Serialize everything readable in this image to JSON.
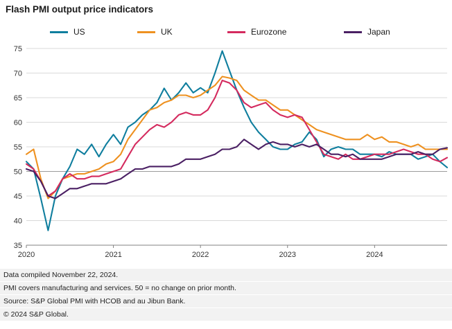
{
  "title": "Flash PMI output price indicators",
  "footer": {
    "lines": [
      "Data compiled November 22, 2024.",
      "PMI covers manufacturing and services. 50 = no change on prior month.",
      "Source: S&P Global PMI with HCOB and au Jibun Bank.",
      "© 2024 S&P Global."
    ]
  },
  "chart_data": {
    "type": "line",
    "title": "Flash PMI output price indicators",
    "xlabel": "",
    "ylabel": "",
    "ylim": [
      35,
      75
    ],
    "yticks": [
      35,
      40,
      45,
      50,
      55,
      60,
      65,
      70,
      75
    ],
    "reference_line": 50,
    "grid": true,
    "legend_position": "top",
    "x_start": "2020-01",
    "x_end": "2024-11",
    "x_interval": "monthly",
    "xticks": [
      {
        "label": "2020",
        "month_index": 0
      },
      {
        "label": "2021",
        "month_index": 12
      },
      {
        "label": "2022",
        "month_index": 24
      },
      {
        "label": "2023",
        "month_index": 36
      },
      {
        "label": "2024",
        "month_index": 48
      }
    ],
    "series": [
      {
        "name": "US",
        "color": "#0f7e9e",
        "values": [
          52,
          50.5,
          44.5,
          38,
          45,
          48.5,
          51,
          54.5,
          53.5,
          55.5,
          53,
          55.5,
          57.5,
          55.5,
          59,
          60,
          61.5,
          62.5,
          64,
          66.9,
          64.5,
          66,
          68,
          66,
          67,
          66,
          70,
          74.5,
          70.5,
          66.5,
          63,
          60,
          58,
          56.5,
          55,
          54.5,
          54.5,
          55.5,
          56,
          58,
          56.5,
          53,
          54.5,
          55,
          54.5,
          54.5,
          53.5,
          53.5,
          53.5,
          53,
          54,
          53.5,
          53.5,
          53.5,
          52.5,
          53,
          53.5,
          52,
          50.8
        ]
      },
      {
        "name": "UK",
        "color": "#ee9120",
        "values": [
          53.5,
          54.5,
          48.5,
          44.5,
          46,
          48.5,
          49,
          49.5,
          49.5,
          50,
          50.5,
          51.5,
          52,
          53.5,
          56.5,
          58.5,
          60.5,
          62.5,
          63,
          64,
          64.5,
          65.5,
          65.5,
          65,
          65.5,
          66.5,
          67.5,
          69.3,
          69,
          68.5,
          66.5,
          65.5,
          64.5,
          64.5,
          63.5,
          62.5,
          62.5,
          61.5,
          60.5,
          59.5,
          58.5,
          58,
          57.5,
          57,
          56.5,
          56.5,
          56.5,
          57.5,
          56.5,
          57,
          56,
          56,
          55.5,
          55,
          55.5,
          54.5,
          54.5,
          54.5,
          54.5
        ]
      },
      {
        "name": "Eurozone",
        "color": "#d42a5e",
        "values": [
          51.5,
          50.5,
          48,
          45,
          46,
          48.5,
          49.5,
          48.5,
          48.5,
          49,
          49,
          49.5,
          50,
          50.5,
          53,
          55.5,
          57,
          58.5,
          59.5,
          59,
          60,
          61.5,
          62,
          61.5,
          61.5,
          62.5,
          65,
          68.5,
          68,
          66.5,
          64,
          63,
          63.5,
          64,
          62.5,
          61.5,
          61,
          61.5,
          61,
          58.5,
          56,
          53.5,
          53,
          52.5,
          53.5,
          52.5,
          52.5,
          53,
          53.5,
          53.5,
          53.5,
          54,
          54.5,
          54,
          53.5,
          53.5,
          52.5,
          52,
          52.8
        ]
      },
      {
        "name": "Japan",
        "color": "#4a1f63",
        "values": [
          50.5,
          50,
          48,
          45,
          44.5,
          45.5,
          46.5,
          46.5,
          47,
          47.5,
          47.5,
          47.5,
          48,
          48.5,
          49.5,
          50.5,
          50.5,
          51,
          51,
          51,
          51,
          51.5,
          52.5,
          52.5,
          52.5,
          53,
          53.5,
          54.5,
          54.5,
          55,
          56.5,
          55.5,
          54.5,
          55.5,
          56,
          55.5,
          55.5,
          55,
          55.5,
          55,
          55.5,
          54.5,
          53.5,
          53.5,
          53,
          53.5,
          52.5,
          52.5,
          52.5,
          52.5,
          53,
          53.5,
          53.5,
          53.5,
          54,
          53.5,
          53.5,
          54.5,
          54.8
        ]
      }
    ]
  }
}
